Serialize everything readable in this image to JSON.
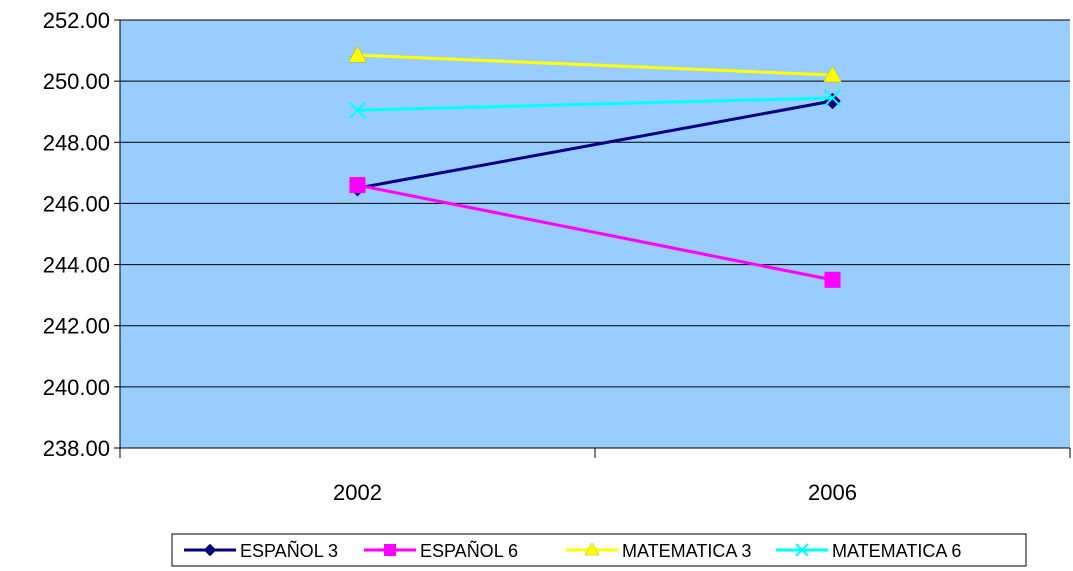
{
  "chart_data": {
    "type": "line",
    "categories": [
      "2002",
      "2006"
    ],
    "series": [
      {
        "name": "ESPAÑOL 3",
        "values": [
          246.5,
          249.35
        ],
        "color": "#000080",
        "marker": "diamond"
      },
      {
        "name": "ESPAÑOL 6",
        "values": [
          246.6,
          243.5
        ],
        "color": "#ff00ff",
        "marker": "square"
      },
      {
        "name": "MATEMATICA 3",
        "values": [
          250.85,
          250.2
        ],
        "color": "#ffff00",
        "marker": "triangle"
      },
      {
        "name": "MATEMATICA 6",
        "values": [
          249.05,
          249.45
        ],
        "color": "#00ffff",
        "marker": "x"
      }
    ],
    "y_ticks": [
      "238.00",
      "240.00",
      "242.00",
      "244.00",
      "246.00",
      "248.00",
      "250.00",
      "252.00"
    ],
    "ylim": [
      238,
      252
    ],
    "grid": true,
    "legend_position": "bottom",
    "plot_background": "#99ccff",
    "title": "",
    "xlabel": "",
    "ylabel": ""
  }
}
